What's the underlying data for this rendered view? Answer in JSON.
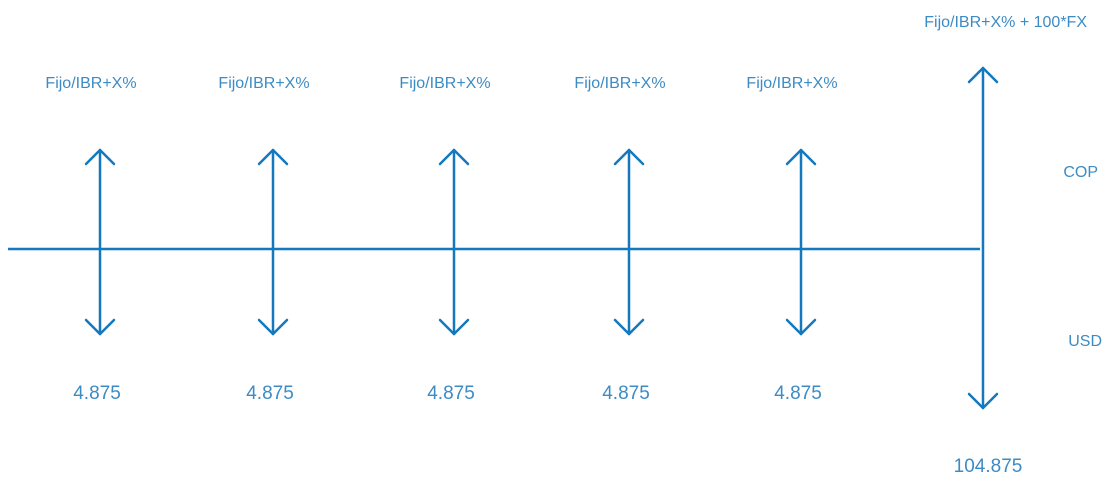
{
  "diagram": {
    "line_color": "#1478BE",
    "text_color": "#3D8BC4",
    "flows": [
      {
        "top_label": "Fijo/IBR+X%",
        "bottom_label": "4.875"
      },
      {
        "top_label": "Fijo/IBR+X%",
        "bottom_label": "4.875"
      },
      {
        "top_label": "Fijo/IBR+X%",
        "bottom_label": "4.875"
      },
      {
        "top_label": "Fijo/IBR+X%",
        "bottom_label": "4.875"
      },
      {
        "top_label": "Fijo/IBR+X%",
        "bottom_label": "4.875"
      }
    ],
    "final_flow": {
      "top_label": "Fijo/IBR+X% + 100*FX",
      "bottom_label": "104.875"
    },
    "legend": {
      "top": "COP",
      "bottom": "USD"
    }
  }
}
